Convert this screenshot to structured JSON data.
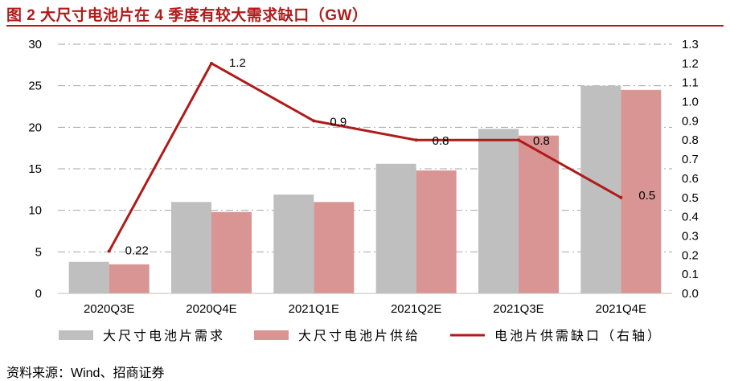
{
  "title": "图 2 大尺寸电池片在 4 季度有较大需求缺口（GW）",
  "source": "资料来源：Wind、招商证券",
  "colors": {
    "title": "#b01a1a",
    "demand_bar": "#bfbfbf",
    "supply_bar": "#d99594",
    "gap_line": "#b01a1a",
    "grid": "#a6a6a6",
    "text": "#000000"
  },
  "chart_data": {
    "type": "bar",
    "title": "大尺寸电池片在 4 季度有较大需求缺口（GW）",
    "categories": [
      "2020Q3E",
      "2020Q4E",
      "2021Q1E",
      "2021Q2E",
      "2021Q3E",
      "2021Q4E"
    ],
    "series": [
      {
        "name": "大尺寸电池片需求",
        "kind": "bar",
        "axis": "left",
        "values": [
          3.8,
          11,
          11.9,
          15.6,
          19.8,
          25
        ]
      },
      {
        "name": "大尺寸电池片供给",
        "kind": "bar",
        "axis": "left",
        "values": [
          3.5,
          9.8,
          11,
          14.8,
          19,
          24.5
        ]
      },
      {
        "name": "电池片供需缺口（右轴）",
        "kind": "line",
        "axis": "right",
        "values": [
          0.22,
          1.2,
          0.9,
          0.8,
          0.8,
          0.5
        ]
      }
    ],
    "line_labels": [
      "0.22",
      "1.2",
      "0.9",
      "0.8",
      "0.8",
      "0.5"
    ],
    "y_left": {
      "min": 0,
      "max": 30,
      "step": 5,
      "ticks": [
        "0",
        "5",
        "10",
        "15",
        "20",
        "25",
        "30"
      ]
    },
    "y_right": {
      "min": 0,
      "max": 1.3,
      "step": 0.1,
      "ticks": [
        "0.0",
        "0.1",
        "0.2",
        "0.3",
        "0.4",
        "0.5",
        "0.6",
        "0.7",
        "0.8",
        "0.9",
        "1.0",
        "1.1",
        "1.2",
        "1.3"
      ]
    },
    "grid": true,
    "legend_position": "bottom"
  }
}
